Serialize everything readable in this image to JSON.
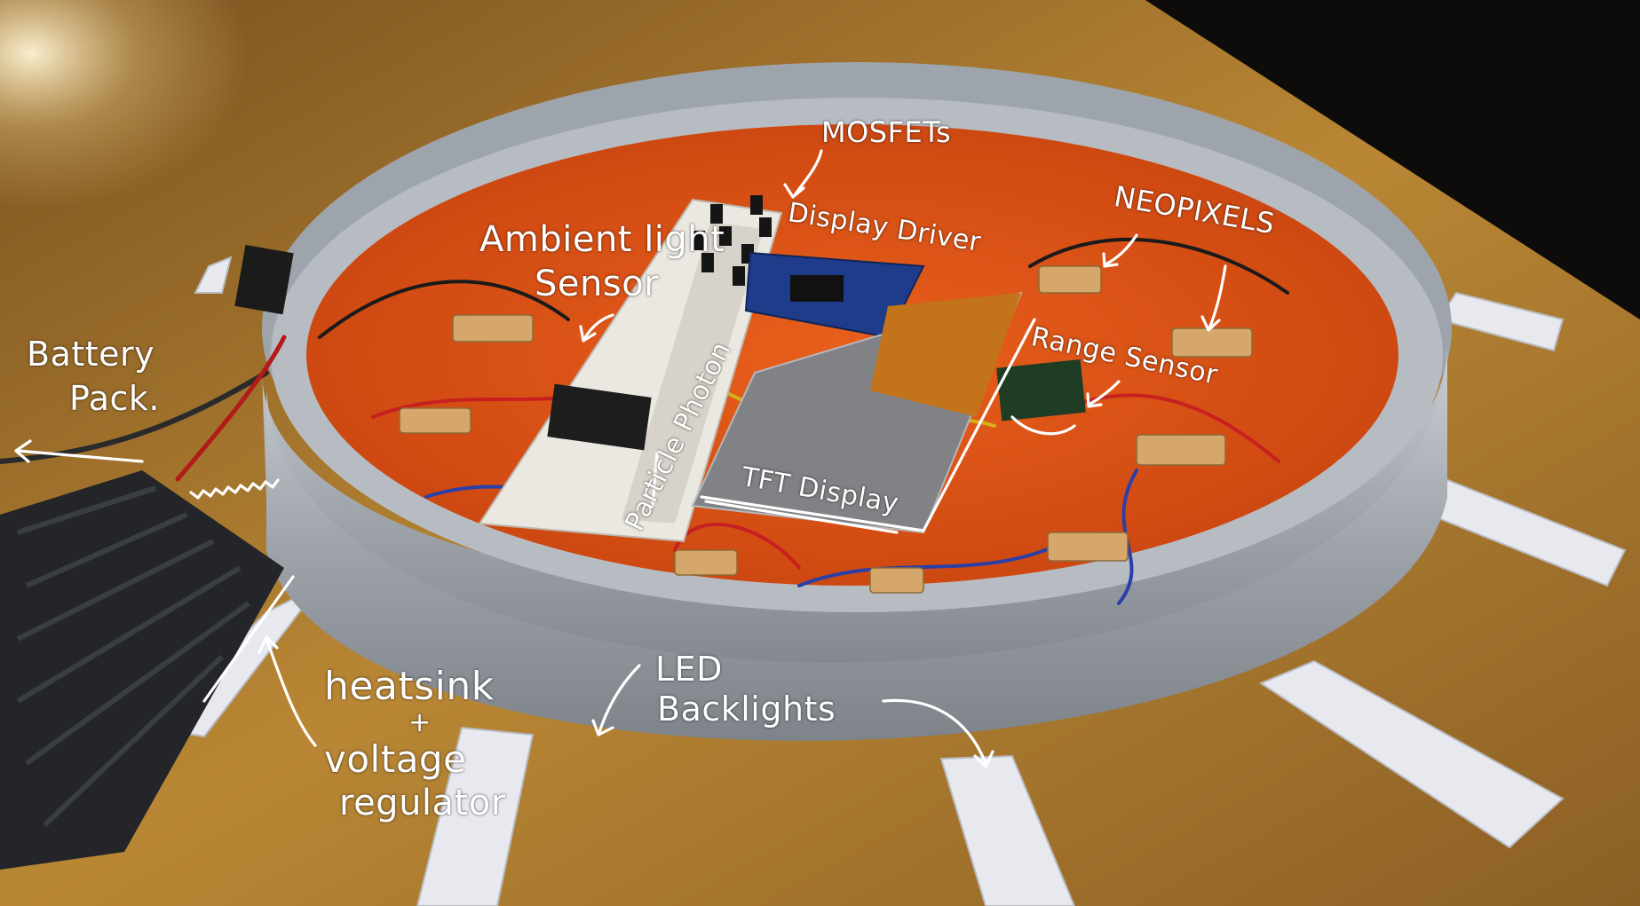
{
  "labels": {
    "mosfets": "MOSFETs",
    "display_driver": "Display Driver",
    "neopixels": "NEOPIXELS",
    "ambient_light": "Ambient light",
    "sensor": "Sensor",
    "battery": "Battery",
    "pack": "Pack.",
    "range_sensor": "Range Sensor",
    "particle_photon": "Particle Photon",
    "tft_display": "TFT Display",
    "heatsink": "heatsink",
    "plus": "+",
    "voltage": "voltage",
    "regulator": "regulator",
    "led": "LED",
    "backlights": "Backlights"
  },
  "colors": {
    "annotation": "#ffffff",
    "table_wood": "#b9852f",
    "aluminum_ring": "#a9aeb5",
    "orange_gel": "#e2561a",
    "breadboard": "#e9e6df",
    "pcb_blue": "#1f3c8a",
    "heatsink": "#222427"
  }
}
